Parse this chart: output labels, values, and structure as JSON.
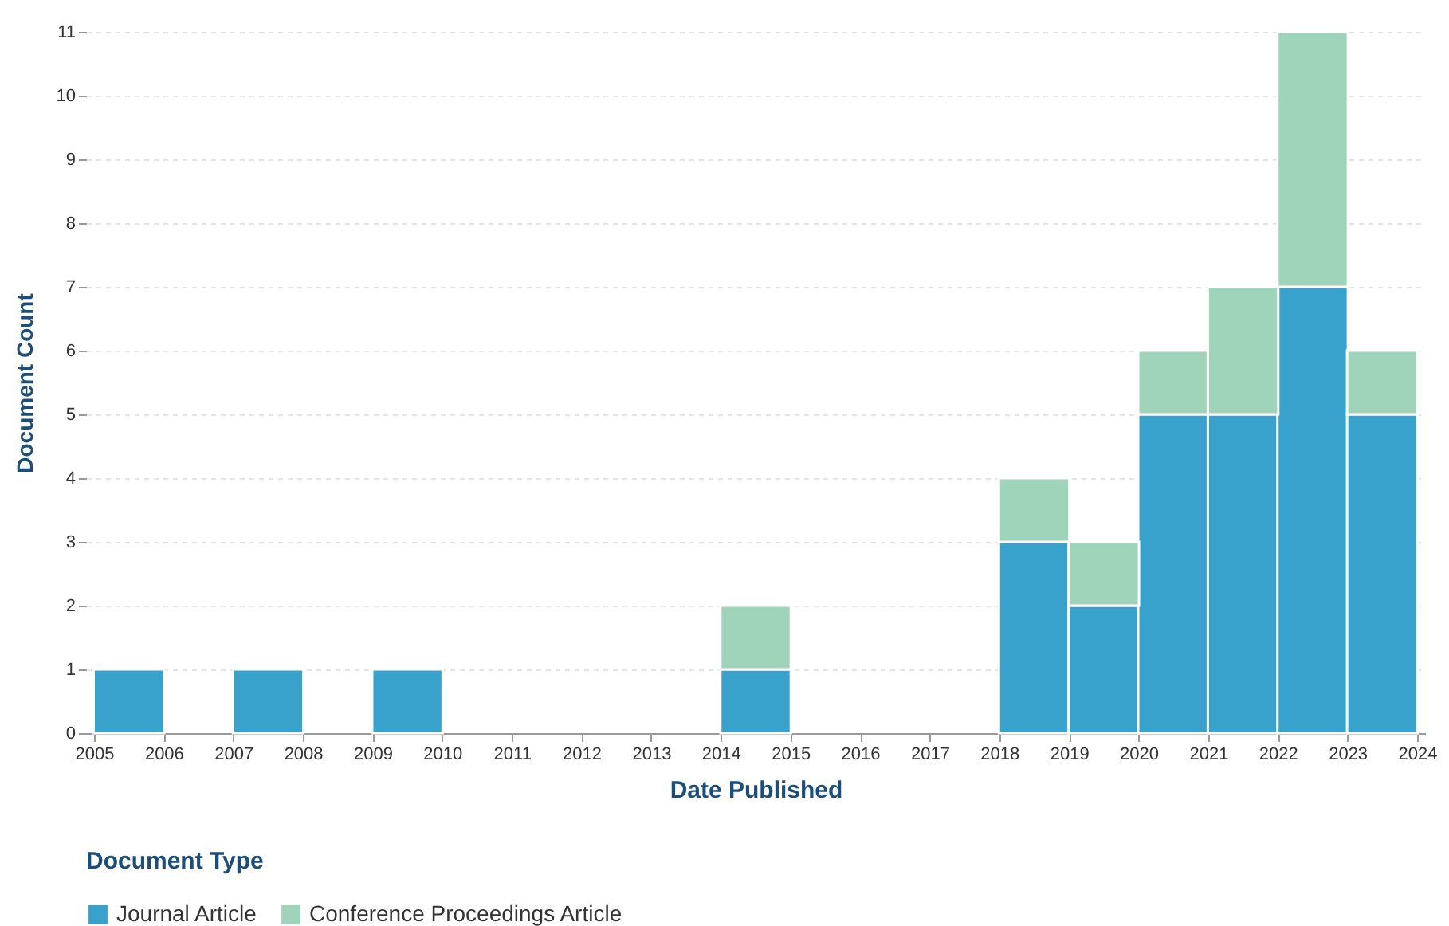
{
  "chart_data": {
    "type": "bar",
    "xlabel": "Date Published",
    "ylabel": "Document Count",
    "legend_title": "Document Type",
    "stacked": true,
    "x": [
      2005.5,
      2007.5,
      2009.5,
      2014.5,
      2018.5,
      2019.5,
      2020.5,
      2021.5,
      2022.5,
      2023.5
    ],
    "series": [
      {
        "name": "Journal Article",
        "color": "#38a2cc",
        "values": [
          1,
          1,
          1,
          1,
          3,
          2,
          5,
          5,
          7,
          5
        ]
      },
      {
        "name": "Conference Proceedings Article",
        "color": "#9fd4bb",
        "values": [
          0,
          0,
          0,
          1,
          1,
          1,
          1,
          2,
          4,
          1
        ]
      }
    ],
    "xlim": [
      2005,
      2024
    ],
    "xticks": [
      2005,
      2006,
      2007,
      2008,
      2009,
      2010,
      2011,
      2012,
      2013,
      2014,
      2015,
      2016,
      2017,
      2018,
      2019,
      2020,
      2021,
      2022,
      2023,
      2024
    ],
    "ylim": [
      0,
      11
    ],
    "yticks": [
      0,
      1,
      2,
      3,
      4,
      5,
      6,
      7,
      8,
      9,
      10,
      11
    ],
    "grid": "y",
    "legend": "bottom"
  }
}
